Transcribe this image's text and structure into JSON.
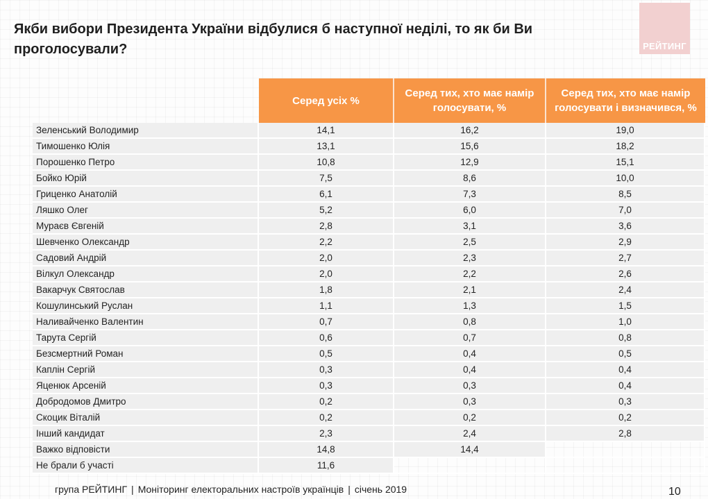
{
  "title": "Якби вибори Президента України відбулися б наступної неділі, то як би Ви проголосували?",
  "logo": {
    "text": "РЕЙТИНГ",
    "color": "#f2d0d0"
  },
  "accent_color": "#f79646",
  "table": {
    "headers": [
      "",
      "Серед усіх %",
      "Серед тих, хто має намір голосувати, %",
      "Серед тих, хто має намір голосувати і визначився, %"
    ],
    "rows": [
      {
        "name": "Зеленський Володимир",
        "all": "14,1",
        "intend": "16,2",
        "decided": "19,0"
      },
      {
        "name": "Тимошенко Юлія",
        "all": "13,1",
        "intend": "15,6",
        "decided": "18,2"
      },
      {
        "name": "Порошенко Петро",
        "all": "10,8",
        "intend": "12,9",
        "decided": "15,1"
      },
      {
        "name": "Бойко Юрій",
        "all": "7,5",
        "intend": "8,6",
        "decided": "10,0"
      },
      {
        "name": "Гриценко Анатолій",
        "all": "6,1",
        "intend": "7,3",
        "decided": "8,5"
      },
      {
        "name": "Ляшко Олег",
        "all": "5,2",
        "intend": "6,0",
        "decided": "7,0"
      },
      {
        "name": "Мураєв Євгеній",
        "all": "2,8",
        "intend": "3,1",
        "decided": "3,6"
      },
      {
        "name": "Шевченко Олександр",
        "all": "2,2",
        "intend": "2,5",
        "decided": "2,9"
      },
      {
        "name": "Садовий Андрій",
        "all": "2,0",
        "intend": "2,3",
        "decided": "2,7"
      },
      {
        "name": "Вілкул Олександр",
        "all": "2,0",
        "intend": "2,2",
        "decided": "2,6"
      },
      {
        "name": "Вакарчук Святослав",
        "all": "1,8",
        "intend": "2,1",
        "decided": "2,4"
      },
      {
        "name": "Кошулинський Руслан",
        "all": "1,1",
        "intend": "1,3",
        "decided": "1,5"
      },
      {
        "name": "Наливайченко Валентин",
        "all": "0,7",
        "intend": "0,8",
        "decided": "1,0"
      },
      {
        "name": "Тарута Сергій",
        "all": "0,6",
        "intend": "0,7",
        "decided": "0,8"
      },
      {
        "name": "Безсмертний Роман",
        "all": "0,5",
        "intend": "0,4",
        "decided": "0,5"
      },
      {
        "name": "Каплін Сергій",
        "all": "0,3",
        "intend": "0,4",
        "decided": "0,4"
      },
      {
        "name": "Яценюк Арсеній",
        "all": "0,3",
        "intend": "0,3",
        "decided": "0,4"
      },
      {
        "name": "Добродомов Дмитро",
        "all": "0,2",
        "intend": "0,3",
        "decided": "0,3"
      },
      {
        "name": "Скоцик Віталій",
        "all": "0,2",
        "intend": "0,2",
        "decided": "0,2"
      },
      {
        "name": "Інший кандидат",
        "all": "2,3",
        "intend": "2,4",
        "decided": "2,8"
      },
      {
        "name": "Важко відповісти",
        "all": "14,8",
        "intend": "14,4",
        "decided": null
      },
      {
        "name": "Не брали б участі",
        "all": "11,6",
        "intend": null,
        "decided": null
      }
    ]
  },
  "footer": {
    "org": "група РЕЙТИНГ",
    "survey": "Моніторинг електоральних настроїв українців",
    "date": "січень  2019",
    "separator": "|"
  },
  "page_number": "10"
}
